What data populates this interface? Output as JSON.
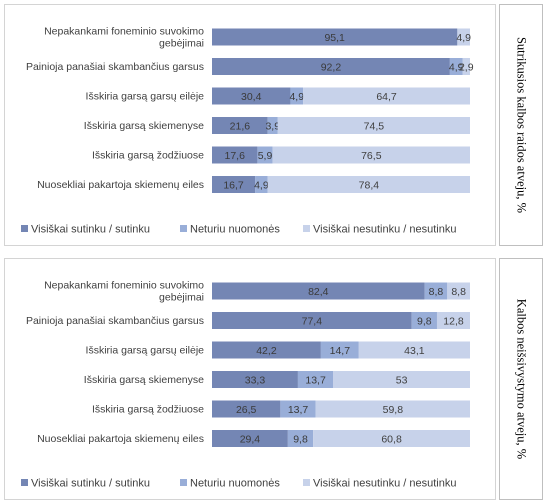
{
  "colors": {
    "agree": "#7486b4",
    "neutral": "#99aed8",
    "disagree": "#c7d2ea",
    "label_dark": "#3a3a3a",
    "label_light": "#404040",
    "axis_text": "#404040"
  },
  "chart_data": [
    {
      "type": "bar",
      "orientation": "horizontal",
      "stacked": true,
      "side_label": "Sutrikusios kalbos raidos atveju, %",
      "categories": [
        [
          "Nepakankami foneminio suvokimo",
          "gebėjimai"
        ],
        [
          "Painioja panašiai skambančius garsus"
        ],
        [
          "Išskiria garsą garsų eilėje"
        ],
        [
          "Išskiria garsą skiemenyse"
        ],
        [
          "Išskiria garsą žodžiuose"
        ],
        [
          "Nuosekliai pakartoja skiemenų eiles"
        ]
      ],
      "series": [
        {
          "name": "Visiškai sutinku / sutinku",
          "values": [
            95.1,
            92.2,
            30.4,
            21.6,
            17.6,
            16.7
          ],
          "labels": [
            "95,1",
            "92,2",
            "30,4",
            "21,6",
            "17,6",
            "16,7"
          ]
        },
        {
          "name": "Neturiu nuomonės",
          "values": [
            0,
            4.9,
            4.9,
            3.9,
            5.9,
            4.9
          ],
          "labels": [
            "",
            "4,9",
            "4,9",
            "3,9",
            "5,9",
            "4,9"
          ]
        },
        {
          "name": "Visiškai nesutinku / nesutinku",
          "values": [
            4.9,
            2.9,
            64.7,
            74.5,
            76.5,
            78.4
          ],
          "labels": [
            "4,9",
            "2,9",
            "64,7",
            "74,5",
            "76,5",
            "78,4"
          ]
        }
      ],
      "xlim": [
        0,
        100
      ],
      "legend_position": "bottom"
    },
    {
      "type": "bar",
      "orientation": "horizontal",
      "stacked": true,
      "side_label": "Kalbos neišsivystymo atveju, %",
      "categories": [
        [
          "Nepakankami foneminio suvokimo",
          "gebėjimai"
        ],
        [
          "Painioja panašiai skambančius garsus"
        ],
        [
          "Išskiria garsą garsų eilėje"
        ],
        [
          "Išskiria garsą skiemenyse"
        ],
        [
          "Išskiria garsą žodžiuose"
        ],
        [
          "Nuosekliai pakartoja skiemenų eiles"
        ]
      ],
      "series": [
        {
          "name": "Visiškai sutinku / sutinku",
          "values": [
            82.4,
            77.4,
            42.2,
            33.3,
            26.5,
            29.4
          ],
          "labels": [
            "82,4",
            "77,4",
            "42,2",
            "33,3",
            "26,5",
            "29,4"
          ]
        },
        {
          "name": "Neturiu nuomonės",
          "values": [
            8.8,
            9.8,
            14.7,
            13.7,
            13.7,
            9.8
          ],
          "labels": [
            "8,8",
            "9,8",
            "14,7",
            "13,7",
            "13,7",
            "9,8"
          ]
        },
        {
          "name": "Visiškai nesutinku / nesutinku",
          "values": [
            8.8,
            12.8,
            43.1,
            53,
            59.8,
            60.8
          ],
          "labels": [
            "8,8",
            "12,8",
            "43,1",
            "53",
            "59,8",
            "60,8"
          ]
        }
      ],
      "xlim": [
        0,
        100
      ],
      "legend_position": "bottom"
    }
  ]
}
